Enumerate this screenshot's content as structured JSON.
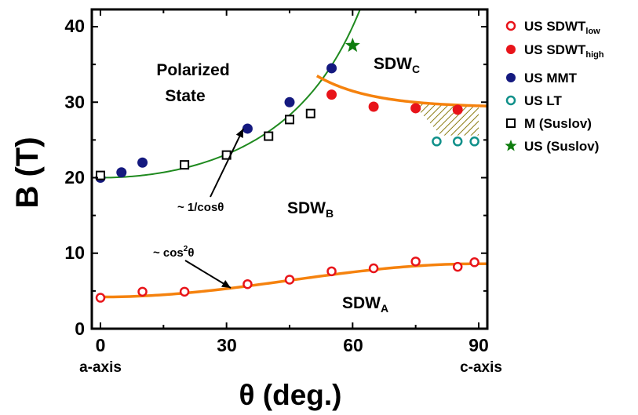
{
  "chart_data": {
    "type": "scatter",
    "title": "",
    "xlabel": "θ (deg.)",
    "ylabel": "B (T)",
    "xlim": [
      -1,
      92
    ],
    "ylim": [
      0,
      42
    ],
    "x_ticks": [
      "0",
      "30",
      "60",
      "90"
    ],
    "y_ticks": [
      "0",
      "10",
      "20",
      "30",
      "40"
    ],
    "x_end_labels": {
      "left": "a-axis",
      "right": "c-axis"
    },
    "regions": [
      {
        "lines": [
          "Polarized",
          "State"
        ],
        "x": 22,
        "y": 33.5
      },
      {
        "base": "SDW",
        "sub": "C",
        "x": 72,
        "y": 34.5
      },
      {
        "base": "SDW",
        "sub": "B",
        "x": 46,
        "y": 15.5
      },
      {
        "base": "SDW",
        "sub": "A",
        "x": 64,
        "y": 2.2
      }
    ],
    "annotations": [
      {
        "text": "~ 1/cosθ",
        "text_x": 18,
        "text_y": 15.8,
        "arrow_to": [
          34,
          26.5
        ]
      },
      {
        "text": "~ cos",
        "sup": "2",
        "tail": "θ",
        "text_x": 17,
        "text_y": 9.2,
        "arrow_to": [
          31,
          5.4
        ]
      }
    ],
    "series": [
      {
        "name": "US SDWT",
        "name_sub": "low",
        "marker": "circle-open",
        "color": "#e8141a",
        "x": [
          0,
          10,
          20,
          35,
          45,
          55,
          65,
          75,
          85,
          89
        ],
        "y": [
          4.1,
          4.9,
          4.9,
          5.9,
          6.5,
          7.6,
          8.0,
          8.9,
          8.2,
          8.8
        ]
      },
      {
        "name": "US SDWT",
        "name_sub": "high",
        "marker": "circle-filled",
        "color": "#e8141a",
        "x": [
          55,
          65,
          75,
          85
        ],
        "y": [
          31.0,
          29.4,
          29.2,
          29.0
        ]
      },
      {
        "name": "US MMT",
        "marker": "circle-filled",
        "color": "#14197f",
        "x": [
          0,
          5,
          10,
          35,
          45,
          55
        ],
        "y": [
          20.0,
          20.7,
          22.0,
          26.5,
          30.0,
          34.5
        ]
      },
      {
        "name": "US LT",
        "marker": "circle-open",
        "color": "#10908a",
        "x": [
          80,
          85,
          89
        ],
        "y": [
          24.8,
          24.8,
          24.8
        ]
      },
      {
        "name": "M (Suslov)",
        "marker": "square-open",
        "color": "#000000",
        "x": [
          0,
          20,
          30,
          40,
          45,
          50
        ],
        "y": [
          20.3,
          21.7,
          23.0,
          25.5,
          27.7,
          28.5
        ]
      },
      {
        "name": "US (Suslov)",
        "marker": "star",
        "color": "#0f7d0f",
        "x": [
          60
        ],
        "y": [
          37.5
        ]
      }
    ],
    "fits": [
      {
        "label": "~ 1/cosθ",
        "color": "#1f8a1f",
        "form": "20/cos(θ)"
      },
      {
        "label": "SDWA–SDWB boundary",
        "color": "#f5820e",
        "form": "4.2 + 4.4·sin²(θ)"
      },
      {
        "label": "SDWB–SDWC boundary",
        "color": "#f5820e",
        "form": "29.3 + 4.7·exp(-(θ-50)/13)"
      }
    ],
    "hatched_region": {
      "color": "#8a7a10",
      "x_range": [
        74,
        90
      ]
    }
  }
}
